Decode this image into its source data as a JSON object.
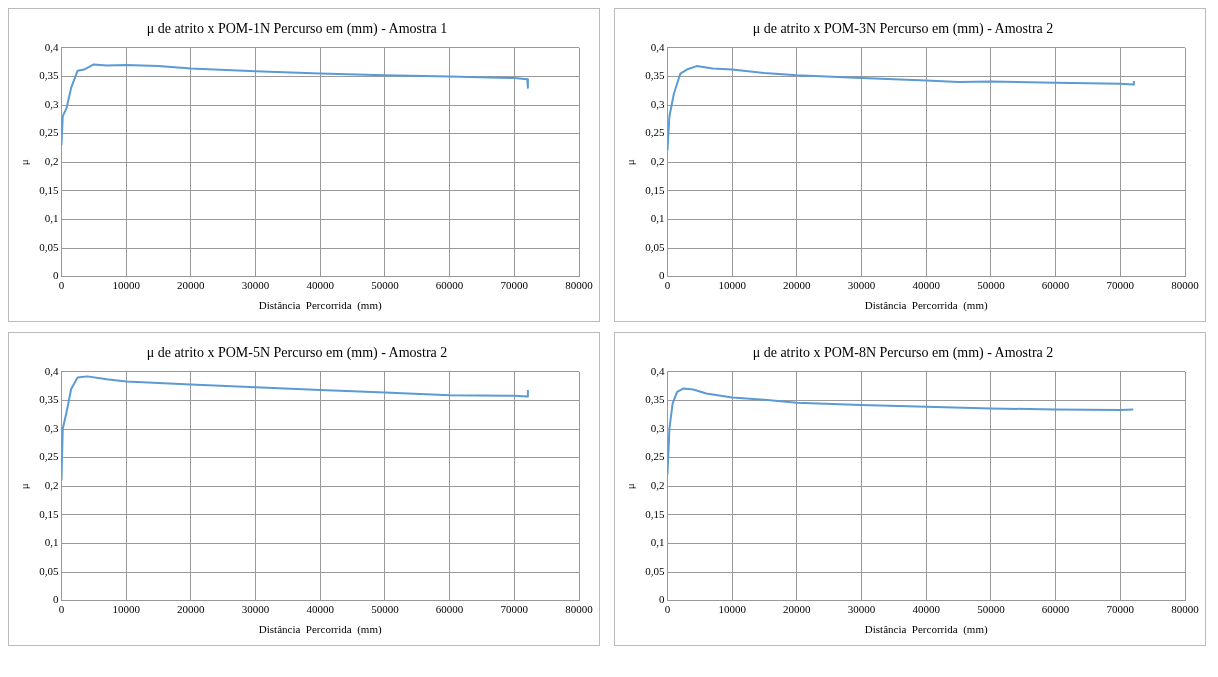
{
  "chart_data": [
    {
      "type": "line",
      "title": "μ de atrito x POM-1N Percurso em (mm) - Amostra 1",
      "xlabel": "Distância  Percorrida  (mm)",
      "ylabel": "μ",
      "grid": true,
      "legend": false,
      "marker": "none",
      "line_style": "solid",
      "xlim": [
        0,
        80000
      ],
      "xticks": [
        0,
        10000,
        20000,
        30000,
        40000,
        50000,
        60000,
        70000,
        80000
      ],
      "ylim": [
        0,
        0.4
      ],
      "yticks": [
        {
          "value": 0,
          "label": "0"
        },
        {
          "value": 0.05,
          "label": "0,05"
        },
        {
          "value": 0.1,
          "label": "0,1"
        },
        {
          "value": 0.15,
          "label": "0,15"
        },
        {
          "value": 0.2,
          "label": "0,2"
        },
        {
          "value": 0.25,
          "label": "0,25"
        },
        {
          "value": 0.3,
          "label": "0,3"
        },
        {
          "value": 0.35,
          "label": "0,35"
        },
        {
          "value": 0.4,
          "label": "0,4"
        }
      ],
      "series": [
        {
          "color": "#5b9bd5",
          "x": [
            0,
            200,
            800,
            1500,
            2500,
            3500,
            5000,
            7000,
            10000,
            15000,
            20000,
            30000,
            40000,
            50000,
            60000,
            70000,
            72000,
            72100
          ],
          "values": [
            0.23,
            0.28,
            0.295,
            0.33,
            0.36,
            0.362,
            0.371,
            0.369,
            0.37,
            0.368,
            0.364,
            0.359,
            0.355,
            0.352,
            0.35,
            0.347,
            0.345,
            0.33
          ]
        }
      ]
    },
    {
      "type": "line",
      "title": "μ de atrito x POM-3N Percurso em (mm) - Amostra 2",
      "xlabel": "Distância  Percorrida  (mm)",
      "ylabel": "μ",
      "grid": true,
      "legend": false,
      "marker": "none",
      "line_style": "solid",
      "xlim": [
        0,
        80000
      ],
      "xticks": [
        0,
        10000,
        20000,
        30000,
        40000,
        50000,
        60000,
        70000,
        80000
      ],
      "ylim": [
        0,
        0.4
      ],
      "yticks": [
        {
          "value": 0,
          "label": "0"
        },
        {
          "value": 0.05,
          "label": "0,05"
        },
        {
          "value": 0.1,
          "label": "0,1"
        },
        {
          "value": 0.15,
          "label": "0,15"
        },
        {
          "value": 0.2,
          "label": "0,2"
        },
        {
          "value": 0.25,
          "label": "0,25"
        },
        {
          "value": 0.3,
          "label": "0,3"
        },
        {
          "value": 0.35,
          "label": "0,35"
        },
        {
          "value": 0.4,
          "label": "0,4"
        }
      ],
      "series": [
        {
          "color": "#5b9bd5",
          "x": [
            0,
            300,
            1000,
            2000,
            3000,
            4500,
            7000,
            10000,
            15000,
            20000,
            30000,
            40000,
            45000,
            50000,
            60000,
            70000,
            72000,
            72100
          ],
          "values": [
            0.22,
            0.28,
            0.32,
            0.355,
            0.362,
            0.368,
            0.364,
            0.362,
            0.356,
            0.352,
            0.347,
            0.343,
            0.34,
            0.341,
            0.339,
            0.337,
            0.336,
            0.342
          ]
        }
      ]
    },
    {
      "type": "line",
      "title": "μ de atrito x POM-5N Percurso em (mm) - Amostra 2",
      "xlabel": "Distância  Percorrida  (mm)",
      "ylabel": "μ",
      "grid": true,
      "legend": false,
      "marker": "none",
      "line_style": "solid",
      "xlim": [
        0,
        80000
      ],
      "xticks": [
        0,
        10000,
        20000,
        30000,
        40000,
        50000,
        60000,
        70000,
        80000
      ],
      "ylim": [
        0,
        0.4
      ],
      "yticks": [
        {
          "value": 0,
          "label": "0"
        },
        {
          "value": 0.05,
          "label": "0,05"
        },
        {
          "value": 0.1,
          "label": "0,1"
        },
        {
          "value": 0.15,
          "label": "0,15"
        },
        {
          "value": 0.2,
          "label": "0,2"
        },
        {
          "value": 0.25,
          "label": "0,25"
        },
        {
          "value": 0.3,
          "label": "0,3"
        },
        {
          "value": 0.35,
          "label": "0,35"
        },
        {
          "value": 0.4,
          "label": "0,4"
        }
      ],
      "series": [
        {
          "color": "#5b9bd5",
          "x": [
            0,
            200,
            800,
            1500,
            2500,
            4000,
            7000,
            10000,
            20000,
            30000,
            40000,
            50000,
            60000,
            70000,
            72000,
            72100
          ],
          "values": [
            0.21,
            0.3,
            0.33,
            0.37,
            0.39,
            0.392,
            0.387,
            0.383,
            0.378,
            0.373,
            0.368,
            0.364,
            0.359,
            0.358,
            0.357,
            0.368
          ]
        }
      ]
    },
    {
      "type": "line",
      "title": "μ de atrito x POM-8N Percurso em (mm) - Amostra 2",
      "xlabel": "Distância  Percorrida  (mm)",
      "ylabel": "μ",
      "grid": true,
      "legend": false,
      "marker": "none",
      "line_style": "solid",
      "xlim": [
        0,
        80000
      ],
      "xticks": [
        0,
        10000,
        20000,
        30000,
        40000,
        50000,
        60000,
        70000,
        80000
      ],
      "ylim": [
        0,
        0.4
      ],
      "yticks": [
        {
          "value": 0,
          "label": "0"
        },
        {
          "value": 0.05,
          "label": "0,05"
        },
        {
          "value": 0.1,
          "label": "0,1"
        },
        {
          "value": 0.15,
          "label": "0,15"
        },
        {
          "value": 0.2,
          "label": "0,2"
        },
        {
          "value": 0.25,
          "label": "0,25"
        },
        {
          "value": 0.3,
          "label": "0,3"
        },
        {
          "value": 0.35,
          "label": "0,35"
        },
        {
          "value": 0.4,
          "label": "0,4"
        }
      ],
      "series": [
        {
          "color": "#5b9bd5",
          "x": [
            0,
            300,
            800,
            1500,
            2500,
            4000,
            6000,
            10000,
            15000,
            20000,
            30000,
            40000,
            50000,
            60000,
            70000,
            72000
          ],
          "values": [
            0.22,
            0.3,
            0.345,
            0.365,
            0.371,
            0.369,
            0.362,
            0.355,
            0.351,
            0.346,
            0.342,
            0.339,
            0.336,
            0.334,
            0.333,
            0.334
          ]
        }
      ]
    }
  ]
}
